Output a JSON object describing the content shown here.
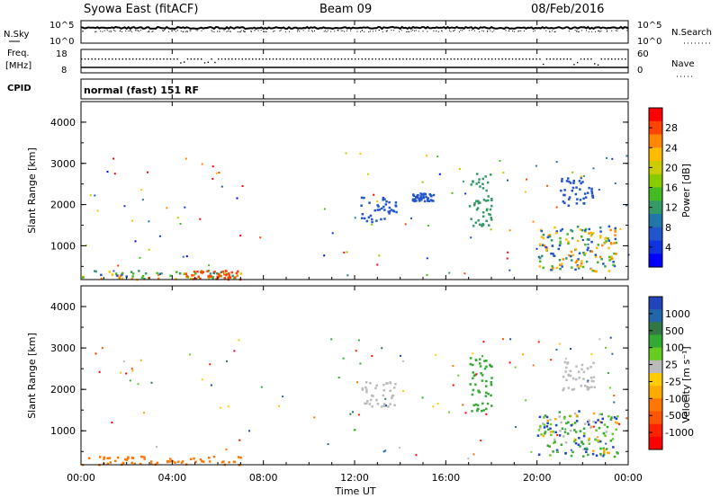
{
  "header": {
    "left_title": "Syowa East (fitACF)",
    "center_title": "Beam 09",
    "right_title": "08/Feb/2016"
  },
  "noise_panel": {
    "left_label": "N.Sky",
    "right_label": "N.Search",
    "left_ticks": [
      "10^5",
      "10^0"
    ],
    "right_ticks": [
      "10^5",
      "10^0"
    ]
  },
  "freq_panel": {
    "left_label_1": "Freq.",
    "left_label_2": "[MHz]",
    "left_ticks": [
      "18",
      "8"
    ],
    "right_label": "Nave",
    "right_ticks": [
      "60",
      "0"
    ]
  },
  "cpid_panel": {
    "label": "CPID",
    "mode_text": "normal (fast) 151 RF"
  },
  "power_colorbar": {
    "label": "Power [dB]",
    "ticks": [
      "28",
      "24",
      "20",
      "16",
      "12",
      "8",
      "4"
    ],
    "colors": [
      "#ff0000",
      "#ff4400",
      "#ff8800",
      "#ffbb00",
      "#cccc00",
      "#88cc00",
      "#44bb22",
      "#339966",
      "#2277aa",
      "#2255cc",
      "#1133dd",
      "#0000ff"
    ]
  },
  "velocity_colorbar": {
    "label": "Velocity [m s^-1]",
    "ticks": [
      "1000",
      "500",
      "100",
      "25",
      "-25",
      "-100",
      "-500",
      "-1000"
    ],
    "colors": [
      "#2244bb",
      "#2266aa",
      "#337744",
      "#33aa33",
      "#66cc22",
      "#bbbbbb",
      "#ffcc00",
      "#ffaa00",
      "#ff7700",
      "#ff5500",
      "#ff2200",
      "#ff0000"
    ]
  },
  "colors": {
    "grey_scatter": "#aaaaaa",
    "frame": "#000000"
  },
  "chart_data": [
    {
      "type": "heatmap",
      "title": "Power",
      "ylabel": "Slant Range [km]",
      "yticks": [
        "4000",
        "3000",
        "2000",
        "1000"
      ],
      "ylim": [
        180,
        4500
      ],
      "xlim": [
        0,
        24
      ],
      "cells": [
        {
          "x0": 0.0,
          "x1": 7.0,
          "y0": 200,
          "y1": 420,
          "c": "mixed_low"
        },
        {
          "x0": 4.5,
          "x1": 7.0,
          "y0": 200,
          "y1": 420,
          "c": "#ff4400"
        },
        {
          "x0": 12.2,
          "x1": 13.8,
          "y0": 1600,
          "y1": 2200,
          "c": "#2255cc"
        },
        {
          "x0": 14.5,
          "x1": 15.5,
          "y0": 2100,
          "y1": 2300,
          "c": "#2255cc"
        },
        {
          "x0": 17.0,
          "x1": 18.0,
          "y0": 1500,
          "y1": 2800,
          "c": "#339966"
        },
        {
          "x0": 20.0,
          "x1": 23.5,
          "y0": 400,
          "y1": 1500,
          "c": "mixed_high"
        },
        {
          "x0": 21.0,
          "x1": 22.5,
          "y0": 2000,
          "y1": 2700,
          "c": "#2255cc"
        }
      ]
    },
    {
      "type": "heatmap",
      "title": "Velocity",
      "ylabel": "Slant Range [km]",
      "xlabel": "Time UT",
      "yticks": [
        "4000",
        "3000",
        "2000",
        "1000"
      ],
      "xticks": [
        "00:00",
        "04:00",
        "08:00",
        "12:00",
        "16:00",
        "20:00",
        "00:00"
      ],
      "ylim": [
        180,
        4500
      ],
      "xlim": [
        0,
        24
      ],
      "cells": [
        {
          "x0": 0.0,
          "x1": 7.0,
          "y0": 200,
          "y1": 420,
          "c": "#ff7700"
        },
        {
          "x0": 12.2,
          "x1": 13.8,
          "y0": 1600,
          "y1": 2200,
          "c": "#bbbbbb"
        },
        {
          "x0": 17.0,
          "x1": 18.0,
          "y0": 1500,
          "y1": 2800,
          "c": "#33aa33"
        },
        {
          "x0": 20.0,
          "x1": 23.5,
          "y0": 400,
          "y1": 1500,
          "c": "mixed_vel"
        },
        {
          "x0": 21.0,
          "x1": 22.5,
          "y0": 2000,
          "y1": 2700,
          "c": "#bbbbbb"
        }
      ]
    }
  ]
}
